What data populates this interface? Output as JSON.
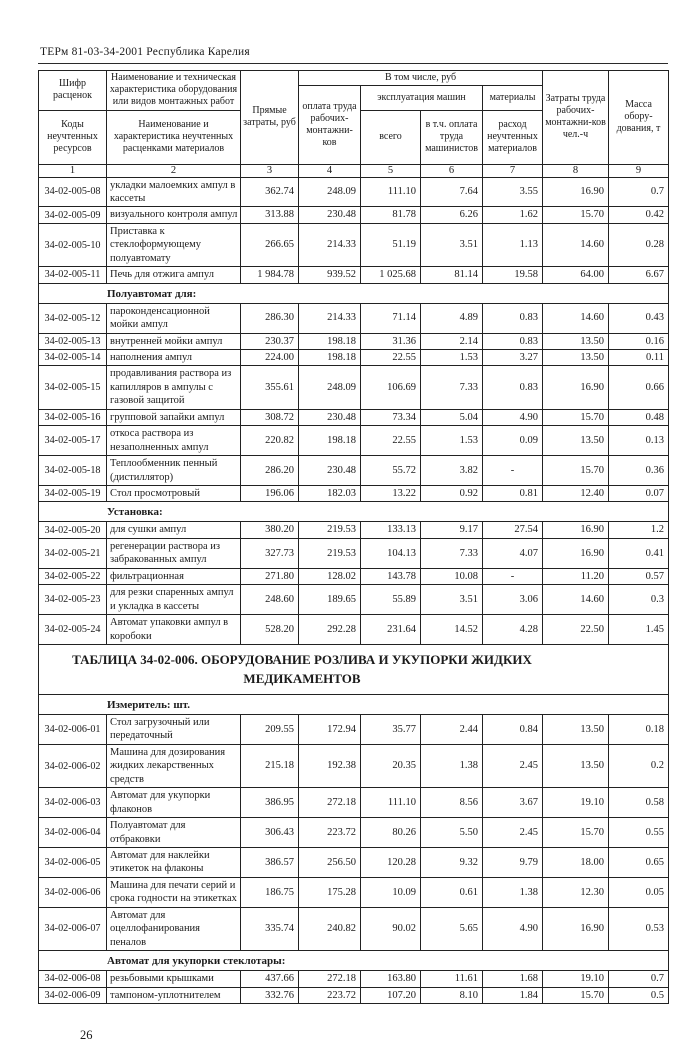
{
  "page": {
    "doc_ref": "ТЕРм 81-03-34-2001  Республика Карелия",
    "page_number": "26"
  },
  "table": {
    "header": {
      "code_top": "Шифр расценок",
      "code_bottom": "Коды неучтенных ресурсов",
      "name_top": "Наименование и техническая характеристика оборудования или видов монтажных работ",
      "name_bottom": "Наименование и характеристика неучтенных расценками материалов",
      "direct_costs": "Прямые затраты, руб",
      "including_group": "В том числе, руб",
      "labor_pay": "оплата труда рабочих-монтажни-ков",
      "machines_group": "эксплуатация машин",
      "materials_group": "материалы",
      "total": "всего",
      "machinists_pay": "в т.ч. оплата труда машинистов",
      "materials_consumption": "расход неучтенных материалов",
      "labor_costs": "Затраты труда рабочих-монтажни-ков чел.-ч",
      "equipment_mass": "Масса обору-дования, т",
      "column_numbers": [
        "1",
        "2",
        "3",
        "4",
        "5",
        "6",
        "7",
        "8",
        "9"
      ]
    },
    "rows": [
      {
        "type": "item",
        "code": "34-02-005-08",
        "name": "укладки малоемких ампул в кассеты",
        "values": [
          "362.74",
          "248.09",
          "111.10",
          "7.64",
          "3.55",
          "16.90",
          "0.7"
        ]
      },
      {
        "type": "item",
        "code": "34-02-005-09",
        "name": "визуального контроля ампул",
        "values": [
          "313.88",
          "230.48",
          "81.78",
          "6.26",
          "1.62",
          "15.70",
          "0.42"
        ]
      },
      {
        "type": "item",
        "code": "34-02-005-10",
        "name": "Приставка к стеклоформующему полуавтомату",
        "values": [
          "266.65",
          "214.33",
          "51.19",
          "3.51",
          "1.13",
          "14.60",
          "0.28"
        ]
      },
      {
        "type": "item",
        "code": "34-02-005-11",
        "name": "Печь для отжига ампул",
        "values": [
          "1 984.78",
          "939.52",
          "1 025.68",
          "81.14",
          "19.58",
          "64.00",
          "6.67"
        ]
      },
      {
        "type": "section",
        "label": "Полуавтомат для:"
      },
      {
        "type": "item",
        "code": "34-02-005-12",
        "name": "пароконденсационной мойки ампул",
        "values": [
          "286.30",
          "214.33",
          "71.14",
          "4.89",
          "0.83",
          "14.60",
          "0.43"
        ]
      },
      {
        "type": "item",
        "code": "34-02-005-13",
        "name": "внутренней мойки ампул",
        "values": [
          "230.37",
          "198.18",
          "31.36",
          "2.14",
          "0.83",
          "13.50",
          "0.16"
        ]
      },
      {
        "type": "item",
        "code": "34-02-005-14",
        "name": "наполнения ампул",
        "values": [
          "224.00",
          "198.18",
          "22.55",
          "1.53",
          "3.27",
          "13.50",
          "0.11"
        ]
      },
      {
        "type": "item",
        "code": "34-02-005-15",
        "name": "продавливания раствора из капилляров в ампулы с газовой защитой",
        "values": [
          "355.61",
          "248.09",
          "106.69",
          "7.33",
          "0.83",
          "16.90",
          "0.66"
        ]
      },
      {
        "type": "item",
        "code": "34-02-005-16",
        "name": "групповой запайки ампул",
        "values": [
          "308.72",
          "230.48",
          "73.34",
          "5.04",
          "4.90",
          "15.70",
          "0.48"
        ]
      },
      {
        "type": "item",
        "code": "34-02-005-17",
        "name": "откоса раствора из незаполненных ампул",
        "values": [
          "220.82",
          "198.18",
          "22.55",
          "1.53",
          "0.09",
          "13.50",
          "0.13"
        ]
      },
      {
        "type": "item",
        "code": "34-02-005-18",
        "name": "Теплообменник пенный (дистиллятор)",
        "values": [
          "286.20",
          "230.48",
          "55.72",
          "3.82",
          "-",
          "15.70",
          "0.36"
        ]
      },
      {
        "type": "item",
        "code": "34-02-005-19",
        "name": "Стол просмотровый",
        "values": [
          "196.06",
          "182.03",
          "13.22",
          "0.92",
          "0.81",
          "12.40",
          "0.07"
        ]
      },
      {
        "type": "section",
        "label": "Установка:"
      },
      {
        "type": "item",
        "code": "34-02-005-20",
        "name": "для сушки ампул",
        "values": [
          "380.20",
          "219.53",
          "133.13",
          "9.17",
          "27.54",
          "16.90",
          "1.2"
        ]
      },
      {
        "type": "item",
        "code": "34-02-005-21",
        "name": "регенерации раствора из забракованных ампул",
        "values": [
          "327.73",
          "219.53",
          "104.13",
          "7.33",
          "4.07",
          "16.90",
          "0.41"
        ]
      },
      {
        "type": "item",
        "code": "34-02-005-22",
        "name": "фильтрационная",
        "values": [
          "271.80",
          "128.02",
          "143.78",
          "10.08",
          "-",
          "11.20",
          "0.57"
        ]
      },
      {
        "type": "item",
        "code": "34-02-005-23",
        "name": "для резки спаренных ампул и укладка в кассеты",
        "values": [
          "248.60",
          "189.65",
          "55.89",
          "3.51",
          "3.06",
          "14.60",
          "0.3"
        ]
      },
      {
        "type": "item",
        "code": "34-02-005-24",
        "name": "Автомат упаковки ампул в коробоки",
        "values": [
          "528.20",
          "292.28",
          "231.64",
          "14.52",
          "4.28",
          "22.50",
          "1.45"
        ]
      },
      {
        "type": "table_title",
        "label": "ТАБЛИЦА  34-02-006. ОБОРУДОВАНИЕ РОЗЛИВА И УКУПОРКИ ЖИДКИХ\nМЕДИКАМЕНТОВ"
      },
      {
        "type": "section",
        "label": "Измеритель: шт."
      },
      {
        "type": "item",
        "code": "34-02-006-01",
        "name": "Стол загрузочный или передаточный",
        "values": [
          "209.55",
          "172.94",
          "35.77",
          "2.44",
          "0.84",
          "13.50",
          "0.18"
        ]
      },
      {
        "type": "item",
        "code": "34-02-006-02",
        "name": "Машина для дозирования жидких лекарственных средств",
        "values": [
          "215.18",
          "192.38",
          "20.35",
          "1.38",
          "2.45",
          "13.50",
          "0.2"
        ]
      },
      {
        "type": "item",
        "code": "34-02-006-03",
        "name": "Автомат для укупорки флаконов",
        "values": [
          "386.95",
          "272.18",
          "111.10",
          "8.56",
          "3.67",
          "19.10",
          "0.58"
        ]
      },
      {
        "type": "item",
        "code": "34-02-006-04",
        "name": "Полуавтомат для отбраковки",
        "values": [
          "306.43",
          "223.72",
          "80.26",
          "5.50",
          "2.45",
          "15.70",
          "0.55"
        ]
      },
      {
        "type": "item",
        "code": "34-02-006-05",
        "name": "Автомат для наклейки этикеток на флаконы",
        "values": [
          "386.57",
          "256.50",
          "120.28",
          "9.32",
          "9.79",
          "18.00",
          "0.65"
        ]
      },
      {
        "type": "item",
        "code": "34-02-006-06",
        "name": "Машина для печати серий и срока годности на этикетках",
        "values": [
          "186.75",
          "175.28",
          "10.09",
          "0.61",
          "1.38",
          "12.30",
          "0.05"
        ]
      },
      {
        "type": "item",
        "code": "34-02-006-07",
        "name": "Автомат для оцеллофанирования пеналов",
        "values": [
          "335.74",
          "240.82",
          "90.02",
          "5.65",
          "4.90",
          "16.90",
          "0.53"
        ]
      },
      {
        "type": "section",
        "label": "Автомат для укупорки стеклотары:"
      },
      {
        "type": "item",
        "code": "34-02-006-08",
        "name": "резьбовыми крышками",
        "values": [
          "437.66",
          "272.18",
          "163.80",
          "11.61",
          "1.68",
          "19.10",
          "0.7"
        ]
      },
      {
        "type": "item",
        "code": "34-02-006-09",
        "name": "тампоном-уплотнителем",
        "values": [
          "332.76",
          "223.72",
          "107.20",
          "8.10",
          "1.84",
          "15.70",
          "0.5"
        ]
      }
    ]
  }
}
